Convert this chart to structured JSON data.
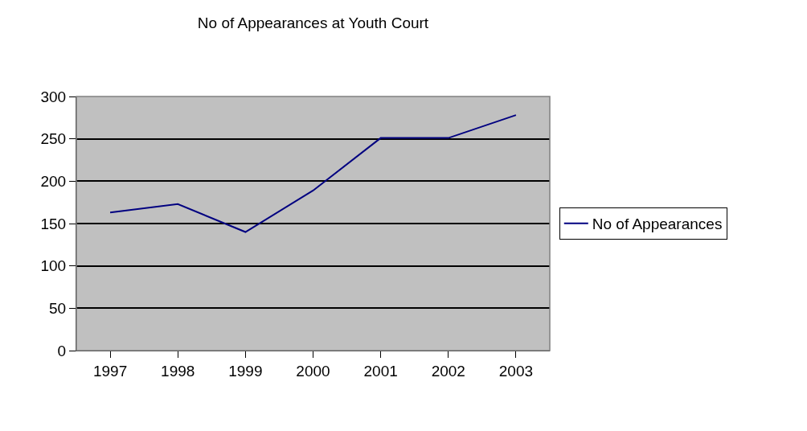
{
  "chart_data": {
    "type": "line",
    "title": "No of Appearances at Youth Court",
    "categories": [
      "1997",
      "1998",
      "1999",
      "2000",
      "2001",
      "2002",
      "2003"
    ],
    "series": [
      {
        "name": "No of Appearances",
        "color": "#000080",
        "values": [
          163,
          173,
          140,
          189,
          251,
          251,
          278
        ]
      }
    ],
    "ylim": [
      0,
      300
    ],
    "yticks": [
      0,
      50,
      100,
      150,
      200,
      250,
      300
    ],
    "grid": "y",
    "legend": "right",
    "marker": "none",
    "line_style": "solid"
  }
}
